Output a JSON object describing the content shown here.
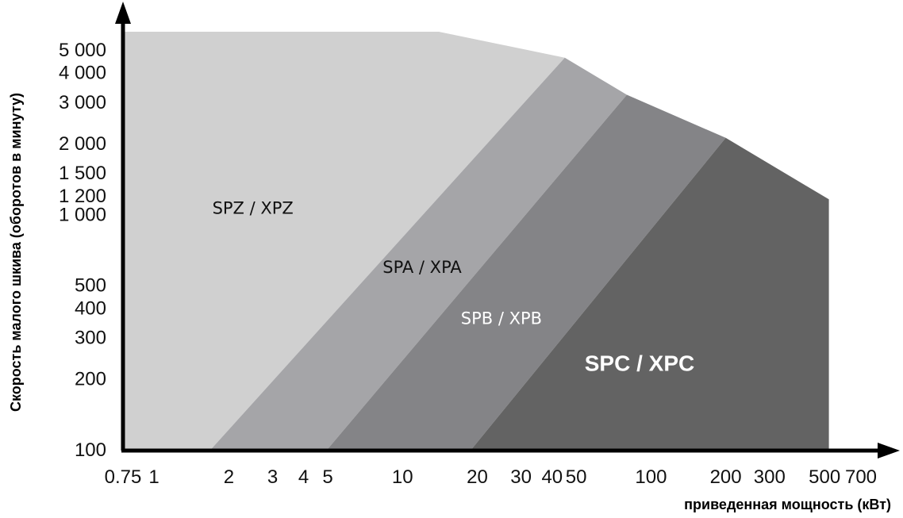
{
  "chart_data": {
    "type": "area",
    "title": "",
    "xlabel": "приведенная мощность (кВт)",
    "ylabel": "Скорость малого шкива (оборотов в минуту)",
    "x_scale": "log",
    "y_scale": "log",
    "xlim": [
      0.75,
      700
    ],
    "ylim": [
      100,
      5000
    ],
    "grid": false,
    "x_ticks": [
      {
        "value": 0.75,
        "label": "0.75"
      },
      {
        "value": 1,
        "label": "1"
      },
      {
        "value": 2,
        "label": "2"
      },
      {
        "value": 3,
        "label": "3"
      },
      {
        "value": 4,
        "label": "4"
      },
      {
        "value": 5,
        "label": "5"
      },
      {
        "value": 10,
        "label": "10"
      },
      {
        "value": 20,
        "label": "20"
      },
      {
        "value": 30,
        "label": "30"
      },
      {
        "value": 40,
        "label": "40"
      },
      {
        "value": 50,
        "label": "50"
      },
      {
        "value": 100,
        "label": "100"
      },
      {
        "value": 200,
        "label": "200"
      },
      {
        "value": 300,
        "label": "300"
      },
      {
        "value": 500,
        "label": "500"
      },
      {
        "value": 700,
        "label": "700"
      }
    ],
    "y_ticks": [
      {
        "value": 100,
        "label": "100"
      },
      {
        "value": 200,
        "label": "200"
      },
      {
        "value": 300,
        "label": "300"
      },
      {
        "value": 400,
        "label": "400"
      },
      {
        "value": 500,
        "label": "500"
      },
      {
        "value": 1000,
        "label": "1 000"
      },
      {
        "value": 1200,
        "label": "1 200"
      },
      {
        "value": 1500,
        "label": "1 500"
      },
      {
        "value": 2000,
        "label": "2 000"
      },
      {
        "value": 3000,
        "label": "3 000"
      },
      {
        "value": 4000,
        "label": "4 000"
      },
      {
        "value": 5000,
        "label": "5 000"
      }
    ],
    "series": [
      {
        "name": "SPZ / XPZ",
        "color": "#d0d0d0",
        "label_style": "normal",
        "label_pos": [
          2.5,
          1000
        ],
        "polygon": [
          [
            0.75,
            100
          ],
          [
            0.75,
            6000
          ],
          [
            14,
            6000
          ],
          [
            45,
            4600
          ],
          [
            1.7,
            100
          ]
        ]
      },
      {
        "name": "SPA / XPA",
        "color": "#a5a5a8",
        "label_style": "normal",
        "label_pos": [
          12,
          560
        ],
        "polygon": [
          [
            1.7,
            100
          ],
          [
            45,
            4600
          ],
          [
            80,
            3200
          ],
          [
            5,
            100
          ]
        ]
      },
      {
        "name": "SPB / XPB",
        "color": "#848487",
        "label_style": "light",
        "label_pos": [
          25,
          340
        ],
        "polygon": [
          [
            5,
            100
          ],
          [
            80,
            3200
          ],
          [
            200,
            2100
          ],
          [
            19,
            100
          ]
        ]
      },
      {
        "name": "SPC / XPC",
        "color": "#636363",
        "label_style": "bold",
        "label_pos": [
          90,
          215
        ],
        "polygon": [
          [
            19,
            100
          ],
          [
            200,
            2100
          ],
          [
            520,
            1150
          ],
          [
            520,
            100
          ]
        ]
      }
    ]
  }
}
